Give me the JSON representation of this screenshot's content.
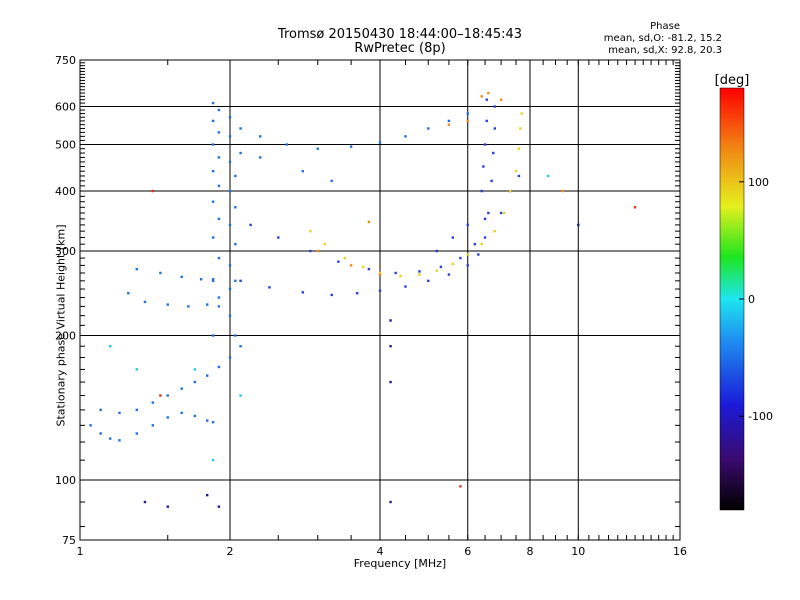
{
  "chart_data": {
    "type": "scatter",
    "title": "Tromsø 20150430 18:44:00–18:45:43",
    "subtitle": "RwPretec (8p)",
    "phase_box": {
      "heading": "Phase",
      "line1": "mean, sd,O: -81.2, 15.2",
      "line2": "mean, sd,X:  92.8, 20.3"
    },
    "xlabel": "Frequency [MHz]",
    "ylabel": "Stationary phase Virtual Height [km]",
    "xscale": "log",
    "yscale": "log",
    "xlim": [
      1,
      16
    ],
    "ylim": [
      75,
      750
    ],
    "xticks": [
      1,
      2,
      4,
      6,
      8,
      10,
      16
    ],
    "yticks": [
      75,
      100,
      200,
      300,
      400,
      500,
      600,
      750
    ],
    "xgrid": [
      2,
      4,
      6,
      8,
      10
    ],
    "ygrid": [
      100,
      200,
      300,
      400,
      500,
      600
    ],
    "grid": true,
    "colorbar": {
      "label": "[deg]",
      "range": [
        -180,
        180
      ],
      "ticks": [
        100,
        0,
        -100
      ]
    },
    "series": [
      {
        "phase": -95,
        "color": "#1f6fdd",
        "points": [
          [
            1.05,
            130
          ],
          [
            1.1,
            125
          ],
          [
            1.15,
            122
          ],
          [
            1.2,
            121
          ],
          [
            1.3,
            125
          ],
          [
            1.4,
            130
          ],
          [
            1.5,
            135
          ],
          [
            1.6,
            138
          ],
          [
            1.7,
            136
          ],
          [
            1.8,
            133
          ],
          [
            1.85,
            132
          ],
          [
            1.1,
            140
          ],
          [
            1.2,
            138
          ],
          [
            1.3,
            140
          ],
          [
            1.4,
            145
          ],
          [
            1.5,
            150
          ],
          [
            1.6,
            155
          ],
          [
            1.7,
            160
          ],
          [
            1.8,
            165
          ],
          [
            1.9,
            172
          ],
          [
            2.0,
            180
          ],
          [
            2.1,
            190
          ],
          [
            1.25,
            245
          ],
          [
            1.35,
            235
          ],
          [
            1.5,
            232
          ],
          [
            1.65,
            230
          ],
          [
            1.8,
            232
          ],
          [
            1.9,
            240
          ],
          [
            2.0,
            250
          ],
          [
            1.3,
            275
          ],
          [
            1.45,
            270
          ],
          [
            1.6,
            265
          ],
          [
            1.75,
            262
          ],
          [
            1.85,
            262
          ],
          [
            1.85,
            200
          ],
          [
            1.85,
            260
          ],
          [
            1.85,
            320
          ],
          [
            1.85,
            380
          ],
          [
            1.85,
            440
          ],
          [
            1.85,
            500
          ],
          [
            1.85,
            560
          ],
          [
            1.85,
            610
          ],
          [
            1.9,
            230
          ],
          [
            1.9,
            290
          ],
          [
            1.9,
            350
          ],
          [
            1.9,
            410
          ],
          [
            1.9,
            470
          ],
          [
            1.9,
            530
          ],
          [
            1.9,
            590
          ],
          [
            2.0,
            220
          ],
          [
            2.0,
            280
          ],
          [
            2.0,
            340
          ],
          [
            2.0,
            400
          ],
          [
            2.0,
            460
          ],
          [
            2.0,
            520
          ],
          [
            2.0,
            570
          ],
          [
            2.05,
            200
          ],
          [
            2.05,
            260
          ],
          [
            2.05,
            310
          ],
          [
            2.05,
            370
          ],
          [
            2.05,
            430
          ],
          [
            2.1,
            480
          ],
          [
            2.1,
            540
          ],
          [
            2.3,
            520
          ],
          [
            2.6,
            500
          ],
          [
            3.0,
            490
          ],
          [
            3.5,
            495
          ],
          [
            4.0,
            505
          ],
          [
            4.5,
            520
          ],
          [
            5.0,
            540
          ],
          [
            5.5,
            560
          ],
          [
            6.0,
            580
          ],
          [
            2.3,
            470
          ],
          [
            2.8,
            440
          ],
          [
            3.2,
            420
          ]
        ]
      },
      {
        "phase": -115,
        "color": "#2a3fd8",
        "points": [
          [
            2.1,
            260
          ],
          [
            2.4,
            252
          ],
          [
            2.8,
            246
          ],
          [
            3.2,
            243
          ],
          [
            3.6,
            245
          ],
          [
            4.0,
            248
          ],
          [
            4.5,
            253
          ],
          [
            5.0,
            260
          ],
          [
            5.5,
            268
          ],
          [
            6.0,
            280
          ],
          [
            6.3,
            295
          ],
          [
            6.5,
            320
          ],
          [
            6.6,
            360
          ],
          [
            6.7,
            420
          ],
          [
            6.75,
            480
          ],
          [
            6.8,
            540
          ],
          [
            6.8,
            600
          ],
          [
            2.2,
            340
          ],
          [
            2.5,
            320
          ],
          [
            2.9,
            300
          ],
          [
            3.3,
            285
          ],
          [
            3.8,
            275
          ],
          [
            4.3,
            270
          ],
          [
            4.8,
            272
          ],
          [
            5.3,
            278
          ],
          [
            5.8,
            290
          ],
          [
            6.2,
            310
          ],
          [
            6.5,
            350
          ],
          [
            6.4,
            400
          ],
          [
            6.45,
            450
          ],
          [
            6.5,
            500
          ],
          [
            6.55,
            560
          ],
          [
            6.55,
            620
          ],
          [
            5.2,
            300
          ],
          [
            5.6,
            320
          ],
          [
            6.0,
            340
          ],
          [
            7.0,
            360
          ],
          [
            7.3,
            400
          ],
          [
            7.6,
            430
          ]
        ]
      },
      {
        "phase": 95,
        "color": "#e6d21e",
        "points": [
          [
            2.9,
            330
          ],
          [
            3.1,
            310
          ],
          [
            3.4,
            290
          ],
          [
            3.7,
            278
          ],
          [
            4.0,
            270
          ],
          [
            4.4,
            266
          ],
          [
            4.8,
            268
          ],
          [
            5.2,
            273
          ],
          [
            5.6,
            282
          ],
          [
            6.0,
            295
          ],
          [
            6.4,
            310
          ],
          [
            6.8,
            330
          ],
          [
            7.1,
            360
          ],
          [
            7.3,
            400
          ],
          [
            7.5,
            440
          ],
          [
            7.6,
            490
          ],
          [
            7.65,
            540
          ],
          [
            7.7,
            580
          ]
        ]
      },
      {
        "phase": 140,
        "color": "#f08a14",
        "points": [
          [
            3.0,
            300
          ],
          [
            3.5,
            280
          ],
          [
            4.0,
            268
          ],
          [
            5.5,
            550
          ],
          [
            6.0,
            560
          ],
          [
            6.4,
            630
          ],
          [
            6.6,
            640
          ],
          [
            7.0,
            620
          ],
          [
            3.8,
            345
          ],
          [
            9.3,
            400
          ]
        ]
      },
      {
        "phase": -30,
        "color": "#22c8e6",
        "points": [
          [
            1.3,
            170
          ],
          [
            1.7,
            170
          ],
          [
            1.85,
            110
          ],
          [
            2.1,
            150
          ],
          [
            8.7,
            430
          ],
          [
            1.15,
            190
          ]
        ]
      },
      {
        "phase": -130,
        "color": "#1a1aa0",
        "points": [
          [
            1.35,
            90
          ],
          [
            1.5,
            88
          ],
          [
            1.8,
            93
          ],
          [
            1.9,
            88
          ],
          [
            4.2,
            90
          ],
          [
            4.2,
            160
          ],
          [
            4.2,
            215
          ],
          [
            4.2,
            190
          ],
          [
            10.0,
            340
          ]
        ]
      },
      {
        "phase": 150,
        "color": "#e53214",
        "points": [
          [
            1.4,
            400
          ],
          [
            5.8,
            97
          ],
          [
            13.0,
            370
          ],
          [
            1.45,
            150
          ]
        ]
      }
    ]
  }
}
